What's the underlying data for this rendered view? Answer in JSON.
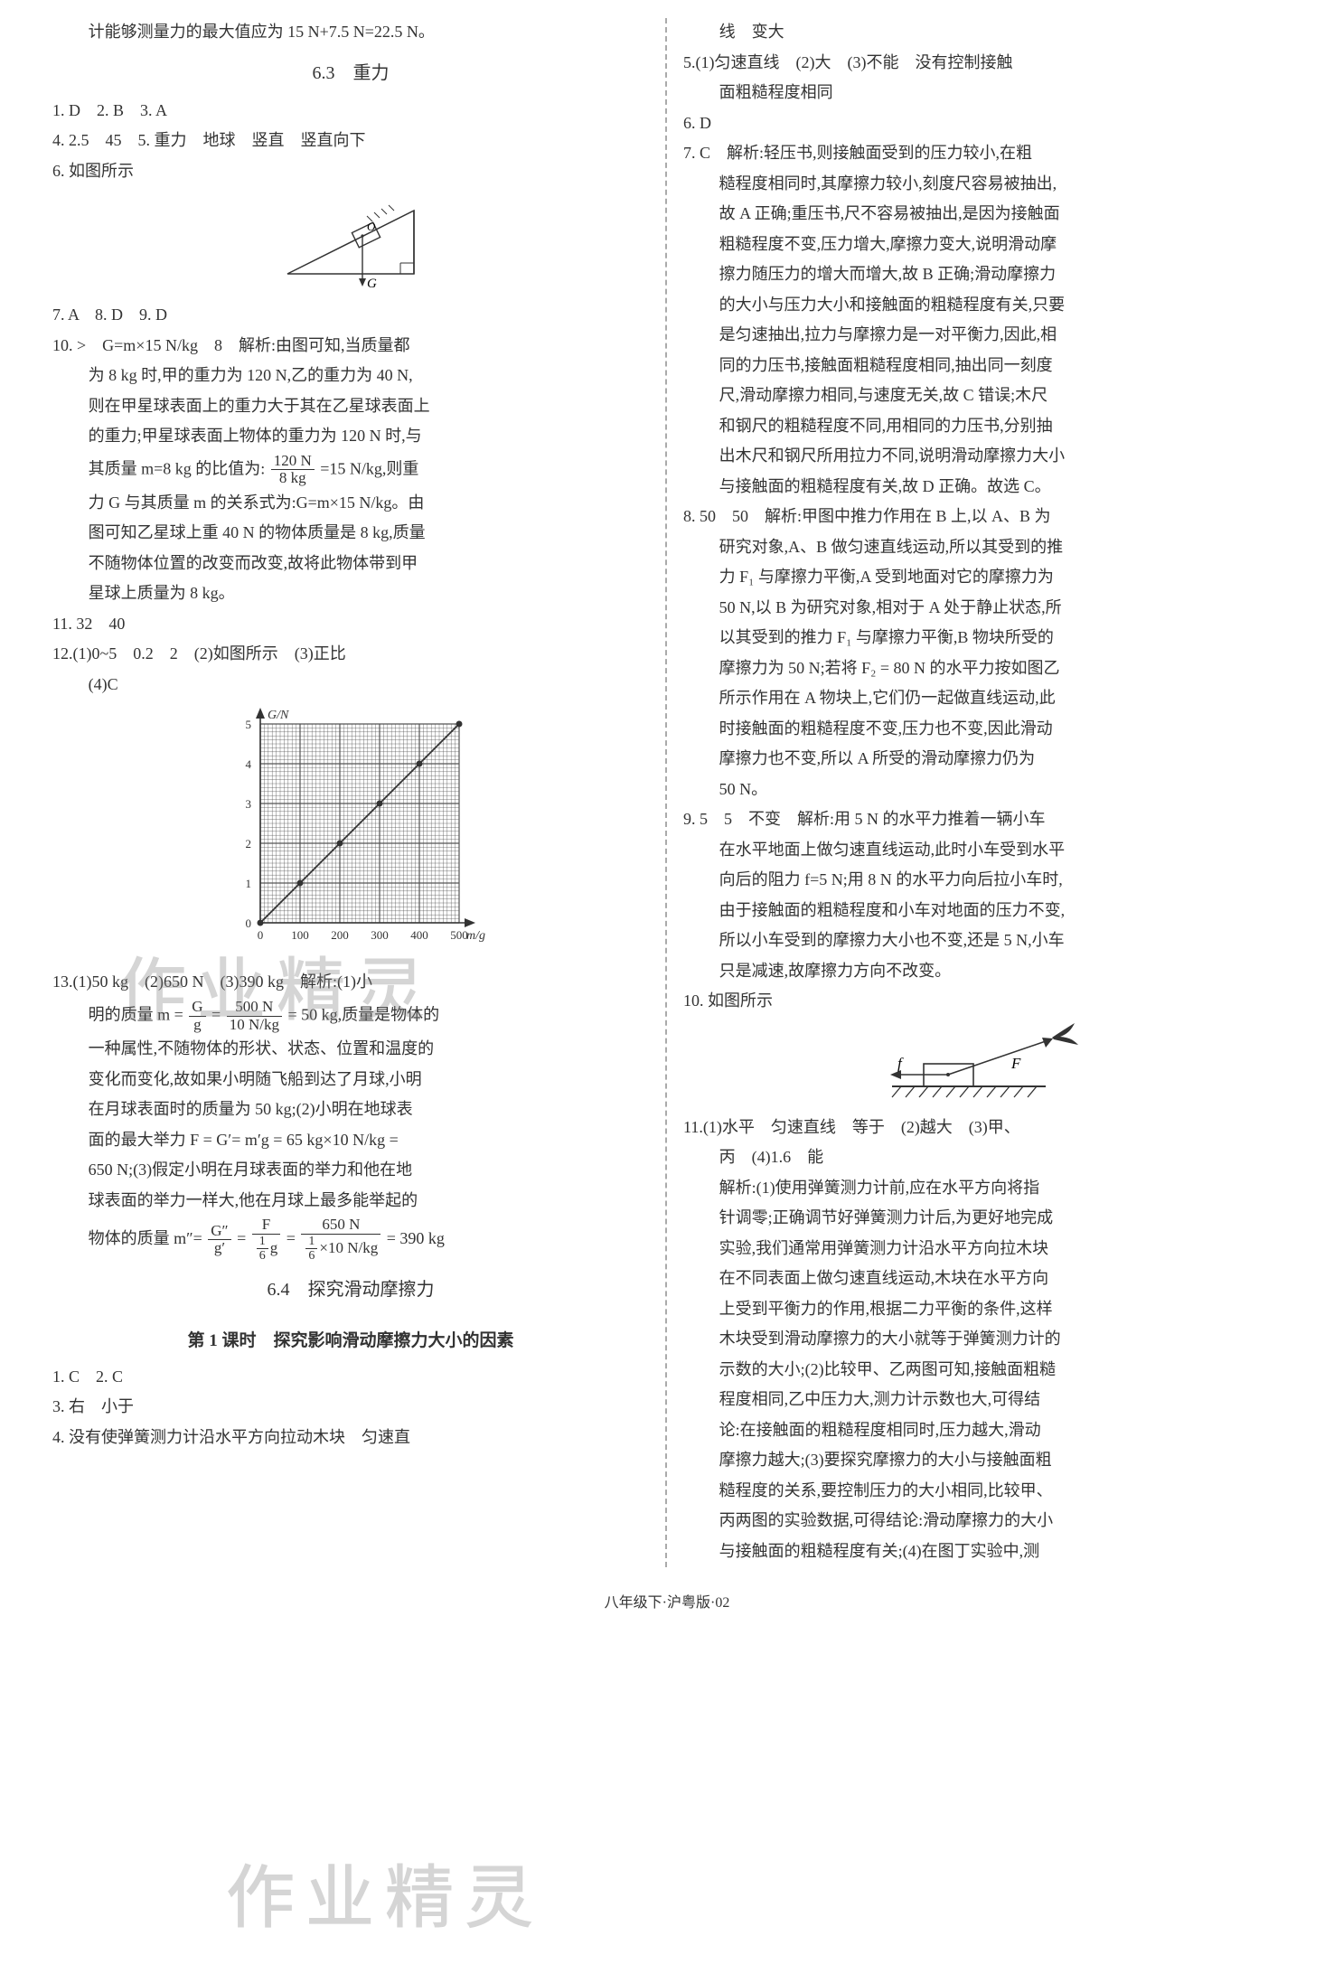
{
  "watermarks": {
    "w1": "作业精灵",
    "w2": "作业精灵"
  },
  "footer": "八年级下·沪粤版·02",
  "left": {
    "top_line": "计能够测量力的最大值应为 15 N+7.5 N=22.5 N。",
    "sec_63": "6.3　重力",
    "q1_3": "1. D　2. B　3. A",
    "q4": "4. 2.5　45　5. 重力　地球　竖直　竖直向下",
    "q6": "6. 如图所示",
    "triangle_label_o": "O",
    "triangle_label_g": "G",
    "q7_9": "7. A　8. D　9. D",
    "q10_head": "10. >　G=m×15 N/kg　8　解析:由图可知,当质量都",
    "q10_a": "为 8 kg 时,甲的重力为 120 N,乙的重力为 40 N,",
    "q10_b": "则在甲星球表面上的重力大于其在乙星球表面上",
    "q10_c": "的重力;甲星球表面上物体的重力为 120 N 时,与",
    "q10_d_before": "其质量 m=8 kg 的比值为:",
    "q10_d_frac_num": "120 N",
    "q10_d_frac_den": "8 kg",
    "q10_d_after": "=15 N/kg,则重",
    "q10_e": "力 G 与其质量 m 的关系式为:G=m×15 N/kg。由",
    "q10_f": "图可知乙星球上重 40 N 的物体质量是 8 kg,质量",
    "q10_g": "不随物体位置的改变而改变,故将此物体带到甲",
    "q10_h": "星球上质量为 8 kg。",
    "q11": "11. 32　40",
    "q12_a": "12.(1)0~5　0.2　2　(2)如图所示　(3)正比",
    "q12_b": "(4)C",
    "chart": {
      "xlabel": "m/g",
      "ylabel": "G/N",
      "xticks": [
        "0",
        "100",
        "200",
        "300",
        "400",
        "500"
      ],
      "yticks": [
        "0",
        "1",
        "2",
        "3",
        "4",
        "5"
      ],
      "points": [
        [
          0,
          0
        ],
        [
          100,
          1
        ],
        [
          200,
          2
        ],
        [
          300,
          3
        ],
        [
          400,
          4
        ],
        [
          500,
          5
        ]
      ]
    },
    "q13_head": "13.(1)50 kg　(2)650 N　(3)390 kg　解析:(1)小",
    "q13_a_before": "明的质量 m =",
    "q13_a_f1_num": "G",
    "q13_a_f1_den": "g",
    "q13_a_mid": "=",
    "q13_a_f2_num": "500 N",
    "q13_a_f2_den": "10 N/kg",
    "q13_a_after": "= 50 kg,质量是物体的",
    "q13_b": "一种属性,不随物体的形状、状态、位置和温度的",
    "q13_c": "变化而变化,故如果小明随飞船到达了月球,小明",
    "q13_d": "在月球表面时的质量为 50 kg;(2)小明在地球表",
    "q13_e": "面的最大举力 F = G′= m′g = 65 kg×10 N/kg =",
    "q13_f": "650 N;(3)假定小明在月球表面的举力和他在地",
    "q13_g": "球表面的举力一样大,他在月球上最多能举起的",
    "q13_h_before": "物体的质量 m″=",
    "q13_h_f1_num": "G″",
    "q13_h_f1_den": "g′",
    "q13_h_mid1": "=",
    "q13_h_f2_num": "F",
    "q13_h_mid2": "=",
    "q13_h_f3_num": "650 N",
    "q13_h_after": "= 390 kg",
    "q13_h_f2_den_f_num": "1",
    "q13_h_f2_den_f_den": "6",
    "q13_h_f2_den_suffix": "g",
    "q13_h_f3_den_f_num": "1",
    "q13_h_f3_den_f_den": "6",
    "q13_h_f3_den_suffix": "×10 N/kg",
    "sec_64": "6.4　探究滑动摩擦力",
    "sec_64_sub": "第 1 课时　探究影响滑动摩擦力大小的因素",
    "p1": "1. C　2. C",
    "p3": "3. 右　小于",
    "p4": "4. 没有使弹簧测力计沿水平方向拉动木块　匀速直"
  },
  "right": {
    "r1": "线　变大",
    "q5_a": "5.(1)匀速直线　(2)大　(3)不能　没有控制接触",
    "q5_b": "面粗糙程度相同",
    "q6": "6. D",
    "q7_head": "7. C　解析:轻压书,则接触面受到的压力较小,在粗",
    "q7_a": "糙程度相同时,其摩擦力较小,刻度尺容易被抽出,",
    "q7_b": "故 A 正确;重压书,尺不容易被抽出,是因为接触面",
    "q7_c": "粗糙程度不变,压力增大,摩擦力变大,说明滑动摩",
    "q7_d": "擦力随压力的增大而增大,故 B 正确;滑动摩擦力",
    "q7_e": "的大小与压力大小和接触面的粗糙程度有关,只要",
    "q7_f": "是匀速抽出,拉力与摩擦力是一对平衡力,因此,相",
    "q7_g": "同的力压书,接触面粗糙程度相同,抽出同一刻度",
    "q7_h": "尺,滑动摩擦力相同,与速度无关,故 C 错误;木尺",
    "q7_i": "和钢尺的粗糙程度不同,用相同的力压书,分别抽",
    "q7_j": "出木尺和钢尺所用拉力不同,说明滑动摩擦力大小",
    "q7_k": "与接触面的粗糙程度有关,故 D 正确。故选 C。",
    "q8_head": "8. 50　50　解析:甲图中推力作用在 B 上,以 A、B 为",
    "q8_a": "研究对象,A、B 做匀速直线运动,所以其受到的推",
    "q8_b": "力 F₁ 与摩擦力平衡,A 受到地面对它的摩擦力为",
    "q8_c": "50 N,以 B 为研究对象,相对于 A 处于静止状态,所",
    "q8_d": "以其受到的推力 F₁ 与摩擦力平衡,B 物块所受的",
    "q8_e": "摩擦力为 50 N;若将 F₂ = 80 N 的水平力按如图乙",
    "q8_f": "所示作用在 A 物块上,它们仍一起做直线运动,此",
    "q8_g": "时接触面的粗糙程度不变,压力也不变,因此滑动",
    "q8_h": "摩擦力也不变,所以 A 所受的滑动摩擦力仍为",
    "q8_i": "50 N。",
    "q9_head": "9. 5　5　不变　解析:用 5 N 的水平力推着一辆小车",
    "q9_a": "在水平地面上做匀速直线运动,此时小车受到水平",
    "q9_b": "向后的阻力 f=5 N;用 8 N 的水平力向后拉小车时,",
    "q9_c": "由于接触面的粗糙程度和小车对地面的压力不变,",
    "q9_d": "所以小车受到的摩擦力大小也不变,还是 5 N,小车",
    "q9_e": "只是减速,故摩擦力方向不改变。",
    "q10": "10. 如图所示",
    "fig10": {
      "label_f": "f",
      "label_F": "F"
    },
    "q11_a": "11.(1)水平　匀速直线　等于　(2)越大　(3)甲、",
    "q11_b": "丙　(4)1.6　能",
    "q11_c": "解析:(1)使用弹簧测力计前,应在水平方向将指",
    "q11_d": "针调零;正确调节好弹簧测力计后,为更好地完成",
    "q11_e": "实验,我们通常用弹簧测力计沿水平方向拉木块",
    "q11_f": "在不同表面上做匀速直线运动,木块在水平方向",
    "q11_g": "上受到平衡力的作用,根据二力平衡的条件,这样",
    "q11_h": "木块受到滑动摩擦力的大小就等于弹簧测力计的",
    "q11_i": "示数的大小;(2)比较甲、乙两图可知,接触面粗糙",
    "q11_j": "程度相同,乙中压力大,测力计示数也大,可得结",
    "q11_k": "论:在接触面的粗糙程度相同时,压力越大,滑动",
    "q11_l": "摩擦力越大;(3)要探究摩擦力的大小与接触面粗",
    "q11_m": "糙程度的关系,要控制压力的大小相同,比较甲、",
    "q11_n": "丙两图的实验数据,可得结论:滑动摩擦力的大小",
    "q11_o": "与接触面的粗糙程度有关;(4)在图丁实验中,测"
  }
}
